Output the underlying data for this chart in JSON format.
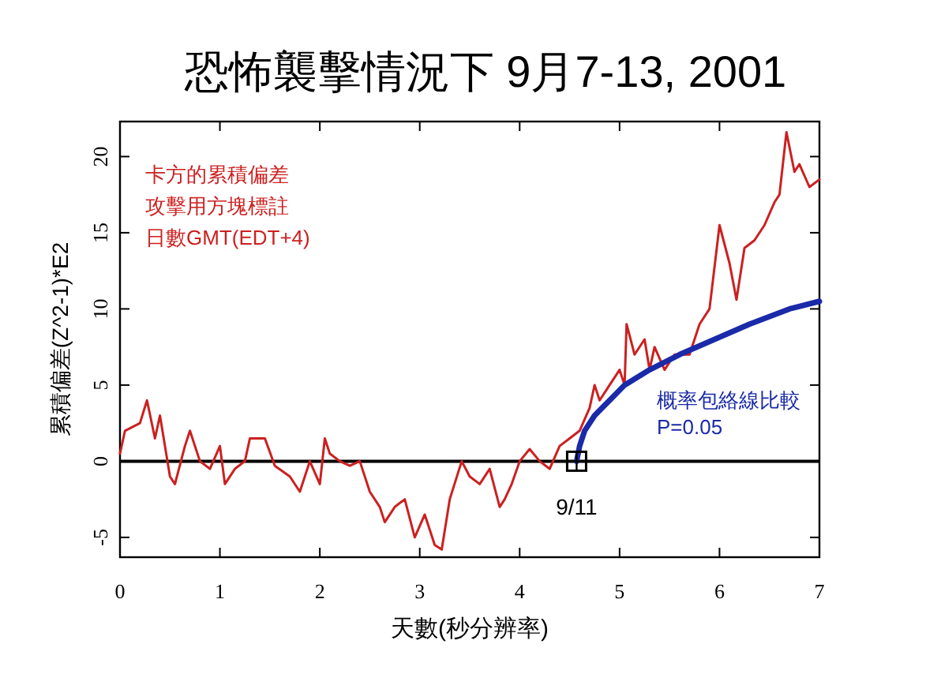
{
  "chart_data": {
    "type": "line",
    "title": "恐怖襲擊情況下 9月7-13, 2001",
    "xlabel": "天數(秒分辨率)",
    "ylabel": "累積偏差(Z^2-1)*E2",
    "xlim": [
      0,
      7
    ],
    "ylim": [
      -6.3,
      22.3
    ],
    "xticks": [
      0,
      1,
      2,
      3,
      4,
      5,
      6,
      7
    ],
    "yticks": [
      -5,
      0,
      5,
      10,
      15,
      20
    ],
    "grid": false,
    "ref_lines": [
      {
        "axis": "y",
        "value": 0,
        "color": "#000000"
      }
    ],
    "annotations": [
      "卡方的累積偏差",
      "攻擊用方塊標註",
      "日數GMT(EDT+4)",
      "概率包絡線比較",
      "P=0.05",
      {
        "text": "9/11",
        "x": 4.57,
        "y": 0
      }
    ],
    "series": [
      {
        "color": "#cc2020",
        "x": [
          0,
          0.05,
          0.2,
          0.27,
          0.35,
          0.4,
          0.5,
          0.55,
          0.65,
          0.7,
          0.8,
          0.9,
          1.0,
          1.05,
          1.15,
          1.25,
          1.3,
          1.45,
          1.55,
          1.7,
          1.8,
          1.9,
          2.0,
          2.05,
          2.1,
          2.2,
          2.3,
          2.4,
          2.5,
          2.6,
          2.65,
          2.75,
          2.85,
          2.95,
          3.05,
          3.15,
          3.22,
          3.3,
          3.42,
          3.5,
          3.6,
          3.7,
          3.8,
          3.85,
          3.92,
          4.0,
          4.1,
          4.2,
          4.3,
          4.4,
          4.5,
          4.6,
          4.7,
          4.75,
          4.8,
          4.9,
          5.0,
          5.05,
          5.07,
          5.15,
          5.25,
          5.3,
          5.35,
          5.45,
          5.55,
          5.7,
          5.8,
          5.9,
          6.0,
          6.1,
          6.17,
          6.25,
          6.35,
          6.45,
          6.55,
          6.6,
          6.67,
          6.75,
          6.8,
          6.9,
          7.0
        ],
        "values": [
          0.5,
          2,
          2.5,
          4,
          1.5,
          3,
          -1,
          -1.5,
          1,
          2,
          0,
          -0.5,
          1,
          -1.5,
          -0.5,
          0,
          1.5,
          1.5,
          -0.3,
          -1,
          -2,
          0,
          -1.5,
          1.5,
          0.5,
          0,
          -0.3,
          0,
          -2,
          -3,
          -4,
          -3,
          -2.5,
          -5,
          -3.5,
          -5.5,
          -5.8,
          -2.5,
          0,
          -1,
          -1.5,
          -0.5,
          -3,
          -2.5,
          -1.5,
          0,
          0.8,
          0,
          -0.5,
          1,
          1.5,
          2,
          3.5,
          5,
          4,
          5,
          6,
          5,
          9,
          7,
          8,
          6,
          7.5,
          6,
          7,
          7,
          9,
          10,
          15.5,
          13,
          10.6,
          14,
          14.5,
          15.5,
          17,
          17.5,
          21.6,
          19,
          19.5,
          18,
          18.5
        ]
      },
      {
        "color": "#1a2aa8",
        "x": [
          4.57,
          4.6,
          4.65,
          4.75,
          4.9,
          5.05,
          5.3,
          5.6,
          5.95,
          6.3,
          6.7,
          7.0
        ],
        "values": [
          0,
          1,
          2,
          3,
          4,
          5,
          6,
          7,
          8,
          9,
          10,
          10.5
        ]
      },
      {
        "type": "scatter",
        "marker": "square",
        "color": "#000000",
        "x": [
          4.57
        ],
        "values": [
          0
        ]
      }
    ]
  }
}
